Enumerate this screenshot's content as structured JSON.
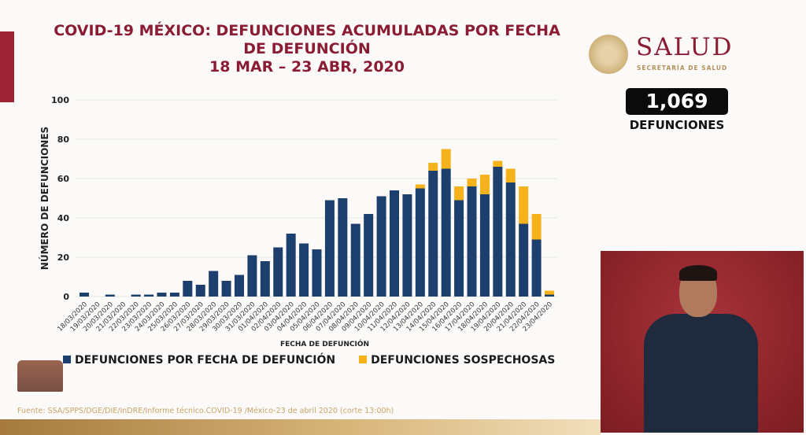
{
  "title": {
    "line1": "COVID-19 MÉXICO: DEFUNCIONES ACUMULADAS POR FECHA",
    "line2": "DE DEFUNCIÓN",
    "line3": "18 MAR – 23 ABR, 2020"
  },
  "brand": {
    "name": "SALUD",
    "subtitle": "SECRETARÍA DE SALUD"
  },
  "total": {
    "value": "1,069",
    "label": "DEFUNCIONES"
  },
  "source": "Fuente: SSA/SPPS/DGE/DIE/InDRE/Informe técnico.COVID-19 /México-23 de abril 2020 (corte 13:00h)",
  "colors": {
    "confirmed": "#1c3f6e",
    "suspected": "#f5b21a",
    "title": "#8a1c34"
  },
  "chart_data": {
    "type": "bar",
    "stacked": true,
    "title": "COVID-19 MÉXICO: DEFUNCIONES ACUMULADAS POR FECHA DE DEFUNCIÓN 18 MAR – 23 ABR, 2020",
    "xlabel": "FECHA DE DEFUNCIÓN",
    "ylabel": "NÚMERO DE DEFUNCIONES",
    "ylim": [
      0,
      100
    ],
    "yticks": [
      0,
      20,
      40,
      60,
      80,
      100
    ],
    "grid": true,
    "legend_position": "bottom",
    "categories": [
      "18/03/2020",
      "19/03/2020",
      "20/03/2020",
      "21/03/2020",
      "22/03/2020",
      "23/03/2020",
      "24/03/2020",
      "25/03/2020",
      "26/03/2020",
      "27/03/2020",
      "28/03/2020",
      "29/03/2020",
      "30/03/2020",
      "31/03/2020",
      "01/04/2020",
      "02/04/2020",
      "03/04/2020",
      "04/04/2020",
      "05/04/2020",
      "06/04/2020",
      "07/04/2020",
      "08/04/2020",
      "09/04/2020",
      "10/04/2020",
      "11/04/2020",
      "12/04/2020",
      "13/04/2020",
      "14/04/2020",
      "15/04/2020",
      "16/04/2020",
      "17/04/2020",
      "18/04/2020",
      "19/04/2020",
      "20/04/2020",
      "21/04/2020",
      "22/04/2020",
      "23/04/2020"
    ],
    "series": [
      {
        "name": "DEFUNCIONES POR FECHA DE DEFUNCIÓN",
        "values": [
          2,
          0,
          1,
          0,
          1,
          1,
          2,
          2,
          8,
          6,
          13,
          8,
          11,
          21,
          18,
          25,
          32,
          27,
          24,
          49,
          50,
          37,
          42,
          51,
          54,
          52,
          55,
          64,
          65,
          49,
          56,
          52,
          66,
          58,
          37,
          29,
          1
        ]
      },
      {
        "name": "DEFUNCIONES SOSPECHOSAS",
        "values": [
          0,
          0,
          0,
          0,
          0,
          0,
          0,
          0,
          0,
          0,
          0,
          0,
          0,
          0,
          0,
          0,
          0,
          0,
          0,
          0,
          0,
          0,
          0,
          0,
          0,
          0,
          2,
          4,
          10,
          7,
          4,
          10,
          3,
          7,
          19,
          13,
          2
        ]
      }
    ]
  }
}
